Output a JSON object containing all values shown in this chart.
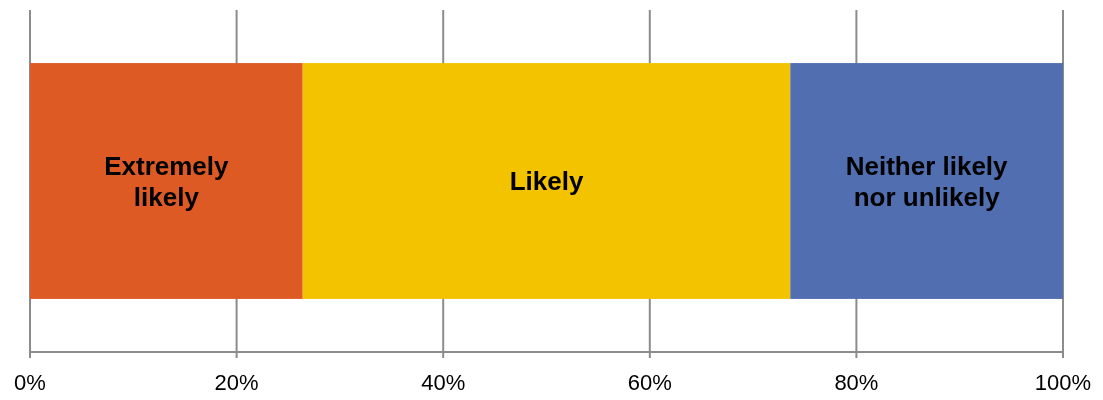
{
  "chart_data": {
    "type": "bar",
    "orientation": "horizontal",
    "stacked": true,
    "categories": [
      null
    ],
    "series": [
      {
        "name": "Extremely likely",
        "color": "#de5a24",
        "values": [
          26.4
        ]
      },
      {
        "name": "Likely",
        "color": "#f4c300",
        "values": [
          47.2
        ]
      },
      {
        "name": "Neither likely nor unlikely",
        "color": "#516eb0",
        "values": [
          26.4
        ]
      }
    ],
    "xlim": [
      0,
      100
    ],
    "xticks": [
      {
        "value": 0,
        "label": "0%"
      },
      {
        "value": 20,
        "label": "20%"
      },
      {
        "value": 40,
        "label": "40%"
      },
      {
        "value": 60,
        "label": "60%"
      },
      {
        "value": 80,
        "label": "80%"
      },
      {
        "value": 100,
        "label": "100%"
      }
    ],
    "grid": "x",
    "legend": false
  }
}
